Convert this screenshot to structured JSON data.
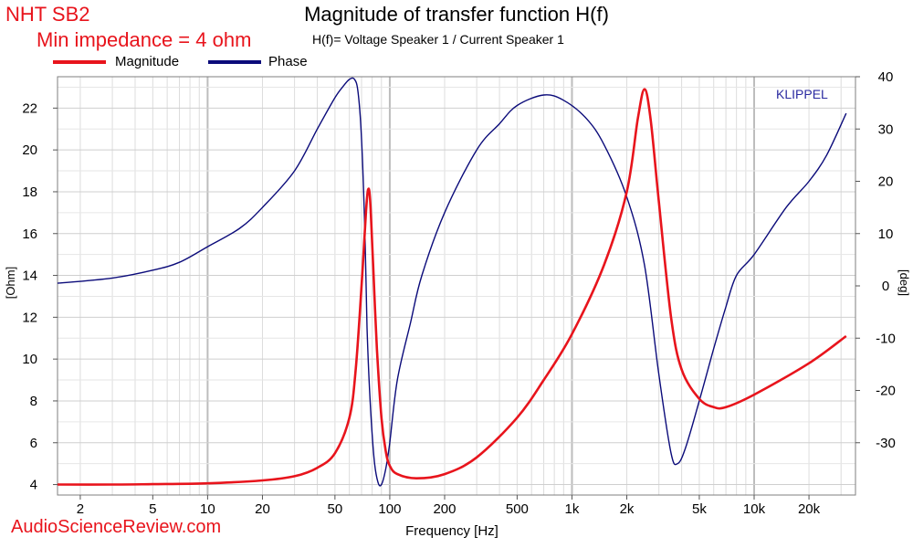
{
  "speaker_title": "NHT SB2",
  "impedance_note": "Min impedance = 4 ohm",
  "klippel_label": "KLIPPEL",
  "watermark": "AudioScienceReview.com",
  "colors": {
    "magnitude": "#e8141c",
    "phase": "#0b0b7a",
    "brand_red": "#e8141c"
  },
  "chart_data": {
    "type": "line",
    "title": "Magnitude of transfer function H(f)",
    "subtitle": "H(f)= Voltage Speaker 1 / Current Speaker 1",
    "xlabel": "Frequency [Hz]",
    "ylabel": "[Ohm]",
    "y2label": "[deg]",
    "xscale": "log",
    "xlim": [
      1.5,
      36000
    ],
    "ylim": [
      3.5,
      23.5
    ],
    "y2lim": [
      -40,
      40
    ],
    "x_ticks": [
      {
        "value": 2,
        "label": "2"
      },
      {
        "value": 5,
        "label": "5"
      },
      {
        "value": 10,
        "label": "10"
      },
      {
        "value": 20,
        "label": "20"
      },
      {
        "value": 50,
        "label": "50"
      },
      {
        "value": 100,
        "label": "100"
      },
      {
        "value": 200,
        "label": "200"
      },
      {
        "value": 500,
        "label": "500"
      },
      {
        "value": 1000,
        "label": "1k"
      },
      {
        "value": 2000,
        "label": "2k"
      },
      {
        "value": 5000,
        "label": "5k"
      },
      {
        "value": 10000,
        "label": "10k"
      },
      {
        "value": 20000,
        "label": "20k"
      }
    ],
    "y_ticks": [
      4,
      6,
      8,
      10,
      12,
      14,
      16,
      18,
      20,
      22
    ],
    "y2_ticks": [
      -30,
      -20,
      -10,
      0,
      10,
      20,
      30,
      40
    ],
    "grid": true,
    "legend": "top-left",
    "series": [
      {
        "name": "Magnitude",
        "axis": "left",
        "color": "#e8141c",
        "points": [
          [
            1.5,
            4.0
          ],
          [
            3,
            4.0
          ],
          [
            5,
            4.02
          ],
          [
            10,
            4.06
          ],
          [
            20,
            4.2
          ],
          [
            30,
            4.4
          ],
          [
            40,
            4.8
          ],
          [
            50,
            5.5
          ],
          [
            60,
            7.2
          ],
          [
            65,
            9.5
          ],
          [
            70,
            13.5
          ],
          [
            74,
            17.0
          ],
          [
            76,
            18.1
          ],
          [
            78,
            17.6
          ],
          [
            81,
            14.5
          ],
          [
            85,
            10.5
          ],
          [
            90,
            7.2
          ],
          [
            95,
            5.6
          ],
          [
            100,
            4.9
          ],
          [
            110,
            4.5
          ],
          [
            140,
            4.3
          ],
          [
            200,
            4.5
          ],
          [
            300,
            5.3
          ],
          [
            500,
            7.2
          ],
          [
            700,
            9.0
          ],
          [
            1000,
            11.2
          ],
          [
            1500,
            14.5
          ],
          [
            2000,
            18.0
          ],
          [
            2300,
            21.5
          ],
          [
            2500,
            22.9
          ],
          [
            2700,
            21.5
          ],
          [
            3000,
            17.5
          ],
          [
            3500,
            12.0
          ],
          [
            4000,
            9.5
          ],
          [
            5000,
            8.1
          ],
          [
            6000,
            7.7
          ],
          [
            7000,
            7.7
          ],
          [
            10000,
            8.3
          ],
          [
            20000,
            9.8
          ],
          [
            32000,
            11.1
          ]
        ]
      },
      {
        "name": "Phase",
        "axis": "right",
        "color": "#0b0b7a",
        "points": [
          [
            1.5,
            0.5
          ],
          [
            3,
            1.5
          ],
          [
            5,
            3.0
          ],
          [
            7,
            4.5
          ],
          [
            10,
            7.5
          ],
          [
            15,
            11.0
          ],
          [
            20,
            15.0
          ],
          [
            30,
            22.0
          ],
          [
            40,
            30.0
          ],
          [
            50,
            36.0
          ],
          [
            55,
            38.0
          ],
          [
            60,
            39.5
          ],
          [
            64,
            39.5
          ],
          [
            67,
            37.0
          ],
          [
            70,
            28.0
          ],
          [
            73,
            10.0
          ],
          [
            75,
            -8.0
          ],
          [
            78,
            -22.0
          ],
          [
            82,
            -33.0
          ],
          [
            86,
            -37.5
          ],
          [
            90,
            -38.0
          ],
          [
            95,
            -35.0
          ],
          [
            100,
            -30.0
          ],
          [
            110,
            -18.0
          ],
          [
            130,
            -7.0
          ],
          [
            150,
            2.0
          ],
          [
            200,
            14.0
          ],
          [
            300,
            26.0
          ],
          [
            400,
            31.0
          ],
          [
            500,
            34.5
          ],
          [
            700,
            36.5
          ],
          [
            900,
            35.5
          ],
          [
            1200,
            32.0
          ],
          [
            1500,
            27.0
          ],
          [
            2000,
            17.0
          ],
          [
            2500,
            4.0
          ],
          [
            3000,
            -17.0
          ],
          [
            3500,
            -32.0
          ],
          [
            3800,
            -34.0
          ],
          [
            4200,
            -31.0
          ],
          [
            5000,
            -22.0
          ],
          [
            6000,
            -12.0
          ],
          [
            7000,
            -4.0
          ],
          [
            8000,
            2.0
          ],
          [
            10000,
            6.0
          ],
          [
            15000,
            15.0
          ],
          [
            20000,
            20.0
          ],
          [
            25000,
            25.0
          ],
          [
            32000,
            33.0
          ]
        ]
      }
    ]
  }
}
